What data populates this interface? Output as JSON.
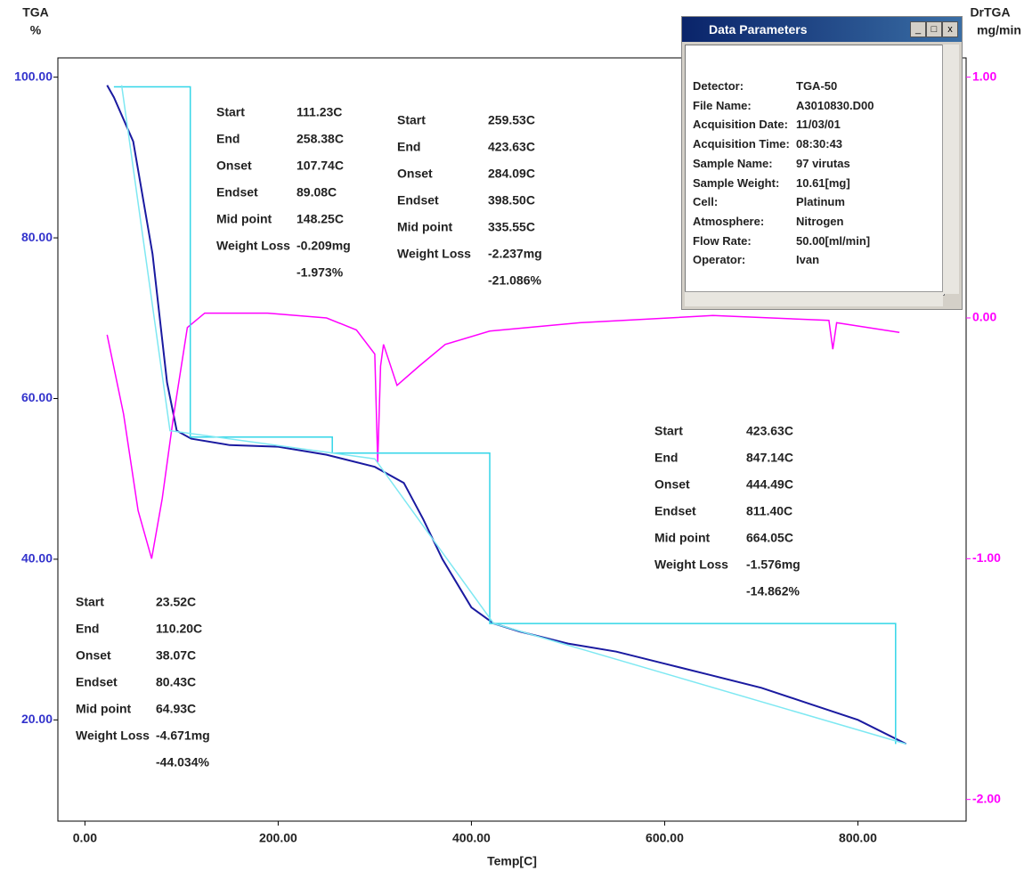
{
  "chart_data": {
    "type": "line",
    "y_title": "TGA",
    "y_unit": "%",
    "y2_title": "DrTGA",
    "y2_unit": "mg/min",
    "x_title": "Temp[C]",
    "xlim": [
      -28,
      912
    ],
    "xticks": [
      {
        "value": 0,
        "label": "0.00"
      },
      {
        "value": 200,
        "label": "200.00"
      },
      {
        "value": 400,
        "label": "400.00"
      },
      {
        "value": 600,
        "label": "600.00"
      },
      {
        "value": 800,
        "label": "800.00"
      }
    ],
    "ylim": [
      7.4,
      102.4
    ],
    "yticks": [
      {
        "value": 20,
        "label": "20.00"
      },
      {
        "value": 40,
        "label": "40.00"
      },
      {
        "value": 60,
        "label": "60.00"
      },
      {
        "value": 80,
        "label": "80.00"
      },
      {
        "value": 100,
        "label": "100.00"
      }
    ],
    "y2lim": [
      -2.09,
      1.08
    ],
    "y2ticks": [
      {
        "value": -2,
        "label": "-2.00"
      },
      {
        "value": -1,
        "label": "-1.00"
      },
      {
        "value": 0,
        "label": "0.00"
      },
      {
        "value": 1,
        "label": "1.00"
      }
    ],
    "series": [
      {
        "color": "#1a1aa0",
        "x": [
          23,
          30,
          50,
          70,
          85,
          95,
          110,
          150,
          200,
          250,
          300,
          330,
          350,
          370,
          400,
          423,
          450,
          500,
          550,
          600,
          650,
          700,
          750,
          800,
          850
        ],
        "values": [
          99,
          97.5,
          92,
          78,
          62,
          56,
          55,
          54.2,
          54,
          53,
          51.5,
          49.5,
          45,
          40,
          34,
          32,
          31,
          29.5,
          28.5,
          27,
          25.5,
          24,
          22,
          20,
          17
        ]
      },
      {
        "color": "#ff00ff",
        "axis": "y2",
        "x": [
          23,
          40,
          55,
          69,
          80,
          92,
          106,
          124,
          189,
          250,
          281,
          300,
          303,
          306,
          309,
          323,
          346,
          373,
          419,
          512,
          650,
          770,
          774,
          778,
          843
        ],
        "values": [
          -0.07,
          -0.4,
          -0.8,
          -1.0,
          -0.75,
          -0.4,
          -0.04,
          0.02,
          0.02,
          0.0,
          -0.05,
          -0.15,
          -0.6,
          -0.2,
          -0.11,
          -0.28,
          -0.2,
          -0.11,
          -0.055,
          -0.02,
          0.01,
          -0.01,
          -0.13,
          -0.02,
          -0.06
        ]
      },
      {
        "color": "#33d6e8",
        "x": [
          30,
          109,
          109,
          256,
          256,
          419,
          419,
          839,
          839
        ],
        "values": [
          98.8,
          98.8,
          55.2,
          55.2,
          53.2,
          53.2,
          32,
          32,
          17
        ]
      },
      {
        "color": "#7ee8f2",
        "x": [
          38,
          88,
          300,
          423,
          850
        ],
        "values": [
          99,
          56,
          52.5,
          32,
          17
        ]
      }
    ],
    "annotations": [
      {
        "items": [
          {
            "label": "Start",
            "value": "23.52C"
          },
          {
            "label": "End",
            "value": "110.20C"
          },
          {
            "label": "Onset",
            "value": "38.07C"
          },
          {
            "label": "Endset",
            "value": "80.43C"
          },
          {
            "label": "Mid point",
            "value": "64.93C"
          },
          {
            "label": "Weight Loss",
            "value": "-4.671mg"
          }
        ],
        "percent": "-44.034%"
      },
      {
        "items": [
          {
            "label": "Start",
            "value": "111.23C"
          },
          {
            "label": "End",
            "value": "258.38C"
          },
          {
            "label": "Onset",
            "value": "107.74C"
          },
          {
            "label": "Endset",
            "value": "89.08C"
          },
          {
            "label": "Mid point",
            "value": "148.25C"
          },
          {
            "label": "Weight Loss",
            "value": "-0.209mg"
          }
        ],
        "percent": "-1.973%"
      },
      {
        "items": [
          {
            "label": "Start",
            "value": "259.53C"
          },
          {
            "label": "End",
            "value": "423.63C"
          },
          {
            "label": "Onset",
            "value": "284.09C"
          },
          {
            "label": "Endset",
            "value": "398.50C"
          },
          {
            "label": "Mid point",
            "value": "335.55C"
          },
          {
            "label": "Weight Loss",
            "value": "-2.237mg"
          }
        ],
        "percent": "-21.086%"
      },
      {
        "items": [
          {
            "label": "Start",
            "value": "423.63C"
          },
          {
            "label": "End",
            "value": "847.14C"
          },
          {
            "label": "Onset",
            "value": "444.49C"
          },
          {
            "label": "Endset",
            "value": "811.40C"
          },
          {
            "label": "Mid point",
            "value": "664.05C"
          },
          {
            "label": "Weight Loss",
            "value": "-1.576mg"
          }
        ],
        "percent": "-14.862%"
      }
    ]
  },
  "window": {
    "title": "Data Parameters",
    "rows": [
      {
        "label": "Detector:",
        "value": "TGA-50"
      },
      {
        "label": "File Name:",
        "value": "A3010830.D00"
      },
      {
        "label": "Acquisition Date:",
        "value": "11/03/01"
      },
      {
        "label": "Acquisition Time:",
        "value": "08:30:43"
      },
      {
        "label": "Sample Name:",
        "value": "97 virutas"
      },
      {
        "label": "Sample Weight:",
        "value": "10.61[mg]"
      },
      {
        "label": "Cell:",
        "value": "Platinum"
      },
      {
        "label": "Atmosphere:",
        "value": "Nitrogen"
      },
      {
        "label": "Flow Rate:",
        "value": "50.00[ml/min]"
      },
      {
        "label": "Operator:",
        "value": "Ivan"
      }
    ]
  }
}
